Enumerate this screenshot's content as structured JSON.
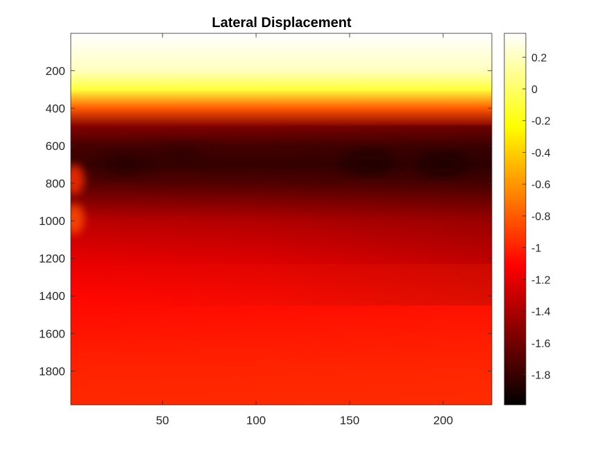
{
  "chart_data": {
    "type": "heatmap",
    "title": "Lateral Displacement",
    "xlabel": "",
    "ylabel": "",
    "colormap": "hot",
    "xlim": [
      1,
      226
    ],
    "ylim": [
      1,
      1980
    ],
    "y_reversed": true,
    "x_ticks": [
      50,
      100,
      150,
      200
    ],
    "y_ticks": [
      200,
      400,
      600,
      800,
      1000,
      1200,
      1400,
      1600,
      1800
    ],
    "colorbar": {
      "clim": [
        -1.99,
        0.35
      ],
      "ticks": [
        0.2,
        0,
        -0.2,
        -0.4,
        -0.6,
        -0.8,
        -1,
        -1.2,
        -1.4,
        -1.6,
        -1.8
      ],
      "tick_labels": [
        "0.2",
        "0",
        "-0.2",
        "-0.4",
        "-0.6",
        "-0.8",
        "-1",
        "-1.2",
        "-1.4",
        "-1.6",
        "-1.8"
      ]
    },
    "depth_profile": {
      "depth": [
        1,
        200,
        300,
        400,
        500,
        600,
        700,
        800,
        1000,
        1200,
        1400,
        1600,
        1800,
        1980
      ],
      "value": [
        0.35,
        0.2,
        -0.1,
        -0.8,
        -1.55,
        -1.75,
        -1.8,
        -1.7,
        -1.35,
        -1.2,
        -1.1,
        -1.05,
        -1.0,
        -0.98
      ]
    },
    "features": [
      {
        "x": 3,
        "y": 780,
        "value": -0.95,
        "note": "warm patch at left edge"
      },
      {
        "x": 3,
        "y": 990,
        "value": -0.85,
        "note": "warm patch at left edge"
      },
      {
        "x": 30,
        "y": 700,
        "value": -1.9
      },
      {
        "x": 60,
        "y": 650,
        "value": -1.85
      },
      {
        "x": 160,
        "y": 690,
        "value": -1.95
      },
      {
        "x": 200,
        "y": 700,
        "value": -1.95
      }
    ]
  }
}
